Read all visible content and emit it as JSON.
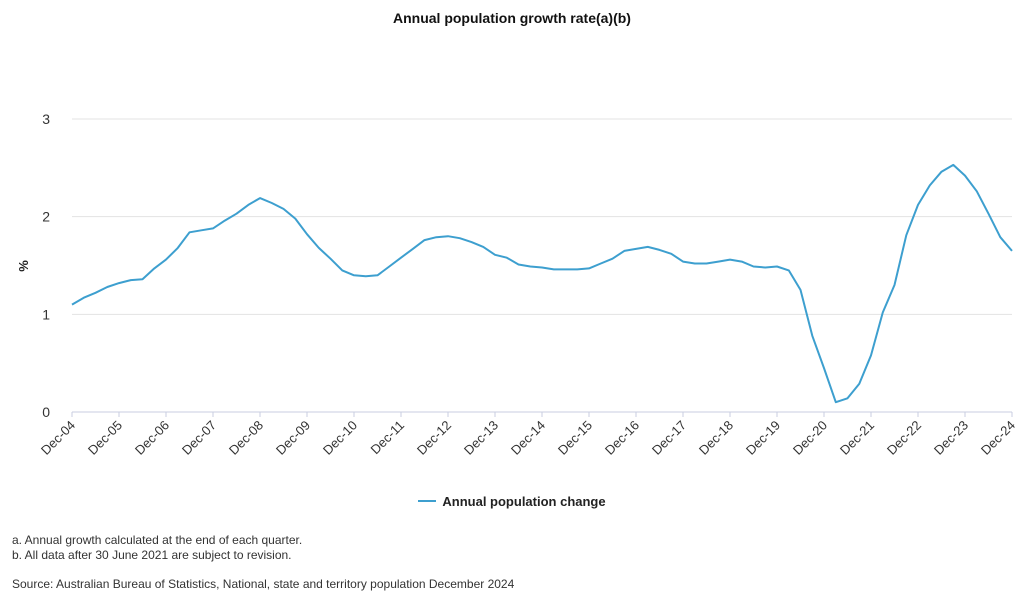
{
  "chart_data": {
    "type": "line",
    "title": "Annual population growth rate(a)(b)",
    "ylabel": "%",
    "ylim": [
      0,
      3
    ],
    "yticks": [
      0,
      1,
      2,
      3
    ],
    "xticks": [
      "Dec-04",
      "Dec-05",
      "Dec-06",
      "Dec-07",
      "Dec-08",
      "Dec-09",
      "Dec-10",
      "Dec-11",
      "Dec-12",
      "Dec-13",
      "Dec-14",
      "Dec-15",
      "Dec-16",
      "Dec-17",
      "Dec-18",
      "Dec-19",
      "Dec-20",
      "Dec-21",
      "Dec-22",
      "Dec-23",
      "Dec-24"
    ],
    "grid": true,
    "legend_position": "bottom",
    "series": [
      {
        "name": "Annual population change",
        "color": "#3d9fcf",
        "values": [
          1.1,
          1.17,
          1.22,
          1.28,
          1.32,
          1.35,
          1.36,
          1.47,
          1.56,
          1.68,
          1.84,
          1.86,
          1.88,
          1.96,
          2.03,
          2.12,
          2.19,
          2.14,
          2.08,
          1.98,
          1.82,
          1.68,
          1.57,
          1.45,
          1.4,
          1.39,
          1.4,
          1.49,
          1.58,
          1.67,
          1.76,
          1.79,
          1.8,
          1.78,
          1.74,
          1.69,
          1.61,
          1.58,
          1.51,
          1.49,
          1.48,
          1.46,
          1.46,
          1.46,
          1.47,
          1.52,
          1.57,
          1.65,
          1.67,
          1.69,
          1.66,
          1.62,
          1.54,
          1.52,
          1.52,
          1.54,
          1.56,
          1.54,
          1.49,
          1.48,
          1.49,
          1.45,
          1.25,
          0.78,
          0.45,
          0.1,
          0.14,
          0.29,
          0.58,
          1.02,
          1.3,
          1.81,
          2.12,
          2.32,
          2.46,
          2.53,
          2.42,
          2.26,
          2.03,
          1.79,
          1.65
        ]
      }
    ]
  },
  "legend": {
    "label": "Annual population change"
  },
  "notes": [
    "a. Annual growth calculated at the end of each quarter.",
    "b. All data after 30 June 2021 are subject to revision."
  ],
  "source": "Source: Australian Bureau of Statistics, National, state and territory population December 2024"
}
